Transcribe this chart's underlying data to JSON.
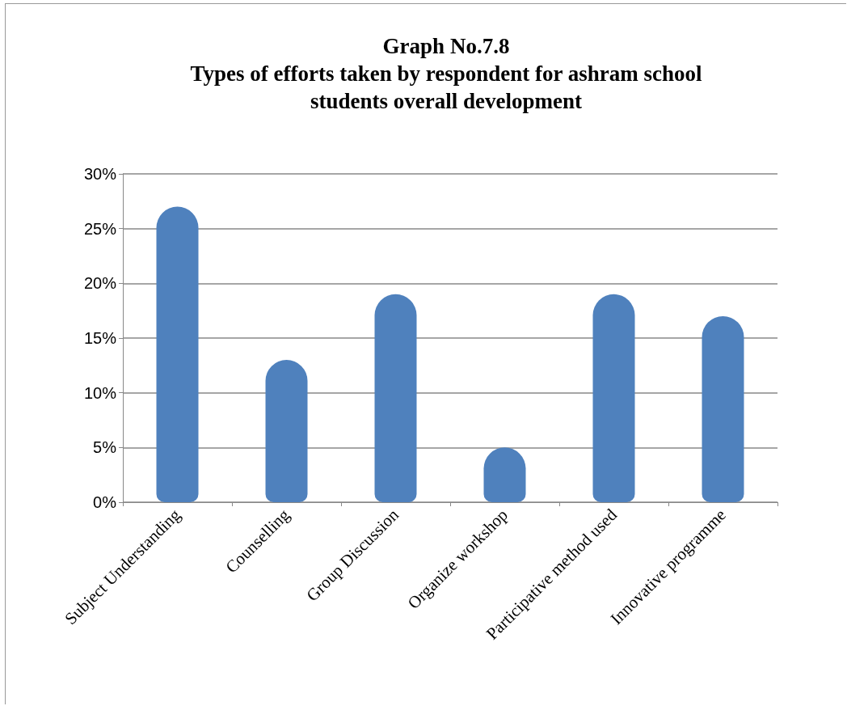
{
  "chart_data": {
    "type": "bar",
    "title": "Graph No.7.8\nTypes of efforts taken by respondent for ashram school\nstudents overall development",
    "categories": [
      "Subject Understanding",
      "Counselling",
      "Group Discussion",
      "Organize workshop",
      "Participative method used",
      "Innovative programme"
    ],
    "values": [
      27,
      13,
      19,
      5,
      19,
      17
    ],
    "color": "#4f81bd",
    "ylim": [
      0,
      30
    ],
    "yticks": [
      {
        "value": 0,
        "label": "0%"
      },
      {
        "value": 5,
        "label": "5%"
      },
      {
        "value": 10,
        "label": "10%"
      },
      {
        "value": 15,
        "label": "15%"
      },
      {
        "value": 20,
        "label": "20%"
      },
      {
        "value": 25,
        "label": "25%"
      },
      {
        "value": 30,
        "label": "30%"
      }
    ],
    "grid": "y"
  }
}
